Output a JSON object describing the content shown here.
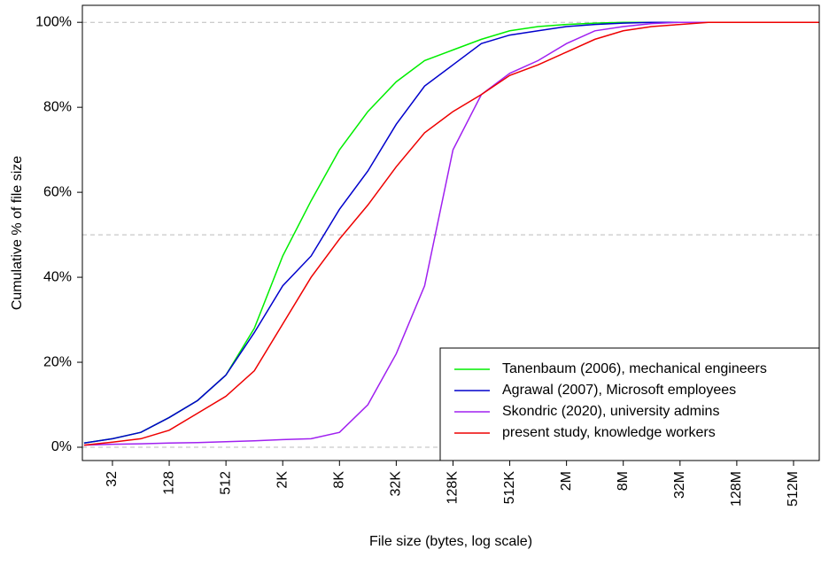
{
  "chart_data": {
    "type": "line",
    "xlabel": "File size (bytes, log scale)",
    "ylabel": "Cumulative % of file size",
    "xscale": "log",
    "xlim": [
      15.35,
      1006000000
    ],
    "ylim": [
      -3.125,
      104
    ],
    "xticks": [
      32,
      128,
      512,
      {
        "value": 2048,
        "label": "2K"
      },
      {
        "value": 8192,
        "label": "8K"
      },
      {
        "value": 32768,
        "label": "32K"
      },
      {
        "value": 131072,
        "label": "128K"
      },
      {
        "value": 524288,
        "label": "512K"
      },
      {
        "value": 2097152,
        "label": "2M"
      },
      {
        "value": 8388608,
        "label": "8M"
      },
      {
        "value": 33554432,
        "label": "32M"
      },
      {
        "value": 134217728,
        "label": "128M"
      },
      {
        "value": 536870912,
        "label": "512M"
      }
    ],
    "yticks": [
      {
        "value": 0,
        "label": "0%"
      },
      {
        "value": 20,
        "label": "20%"
      },
      {
        "value": 40,
        "label": "40%"
      },
      {
        "value": 60,
        "label": "60%"
      },
      {
        "value": 80,
        "label": "80%"
      },
      {
        "value": 100,
        "label": "100%"
      }
    ],
    "reference_lines": [
      0,
      50,
      100
    ],
    "legend": "bottom-right",
    "x": [
      16,
      32,
      64,
      128,
      256,
      512,
      1024,
      2048,
      4096,
      8192,
      16384,
      32768,
      65536,
      131072,
      262144,
      524288,
      1048576,
      2097152,
      4194304,
      8388608,
      16777216,
      33554432,
      67108864,
      1000000000
    ],
    "series": [
      {
        "name": "Tanenbaum (2006), mechanical engineers",
        "color": "#00ee00",
        "values": [
          1,
          2,
          3.5,
          7,
          11,
          17,
          28,
          45,
          58,
          70,
          79,
          86,
          91,
          93.5,
          96,
          98,
          99,
          99.5,
          99.8,
          100,
          100,
          100,
          100,
          100
        ]
      },
      {
        "name": "Agrawal (2007), Microsoft employees",
        "color": "#0000cc",
        "values": [
          1,
          2,
          3.5,
          7,
          11,
          17,
          27,
          38,
          45,
          56,
          65,
          76,
          85,
          90,
          95,
          97,
          98,
          99,
          99.5,
          99.8,
          100,
          100,
          100,
          100
        ]
      },
      {
        "name": "Skondric (2020), university admins",
        "color": "#a020f0",
        "values": [
          0.5,
          0.7,
          0.8,
          1,
          1.1,
          1.3,
          1.5,
          1.8,
          2,
          3.5,
          10,
          22,
          38,
          70,
          83,
          88,
          91,
          95,
          98,
          99,
          99.7,
          100,
          100,
          100
        ]
      },
      {
        "name": "present study, knowledge workers",
        "color": "#ee0000",
        "values": [
          0.5,
          1.2,
          2,
          4,
          8,
          12,
          18,
          29,
          40,
          49,
          57,
          66,
          74,
          79,
          83,
          87.5,
          90,
          93,
          96,
          98,
          99,
          99.5,
          100,
          100
        ]
      }
    ]
  }
}
